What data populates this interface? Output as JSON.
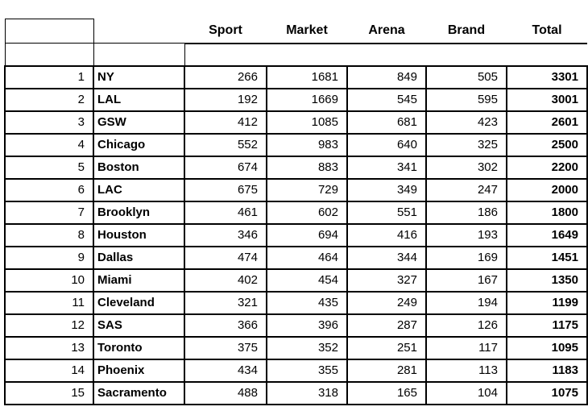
{
  "colors": {
    "gray_fill": "#d9d9d9",
    "orange_fill": "#fce9c8",
    "border": "#000000"
  },
  "table": {
    "columns": [
      "Sport",
      "Market",
      "Arena",
      "Brand",
      "Total"
    ],
    "rows": [
      {
        "rank": "1",
        "team": "NY",
        "values": [
          266,
          1681,
          849,
          505
        ],
        "total": 3301,
        "fills": [
          "gray",
          "orange",
          "orange",
          "orange"
        ]
      },
      {
        "rank": "2",
        "team": "LAL",
        "values": [
          192,
          1669,
          545,
          595
        ],
        "total": 3001,
        "fills": [
          "gray",
          "orange",
          "orange",
          "orange"
        ]
      },
      {
        "rank": "3",
        "team": "GSW",
        "values": [
          412,
          1085,
          681,
          423
        ],
        "total": 2601,
        "fills": [
          "gray",
          "orange",
          "orange",
          "orange"
        ]
      },
      {
        "rank": "4",
        "team": "Chicago",
        "values": [
          552,
          983,
          640,
          325
        ],
        "total": 2500,
        "fills": [
          "orange",
          "orange",
          "orange",
          "orange"
        ]
      },
      {
        "rank": "5",
        "team": "Boston",
        "values": [
          674,
          883,
          341,
          302
        ],
        "total": 2200,
        "fills": [
          "orange",
          "orange",
          "none",
          "orange"
        ]
      },
      {
        "rank": "6",
        "team": "LAC",
        "values": [
          675,
          729,
          349,
          247
        ],
        "total": 2000,
        "fills": [
          "orange",
          "none",
          "none",
          "none"
        ]
      },
      {
        "rank": "7",
        "team": "Brooklyn",
        "values": [
          461,
          602,
          551,
          186
        ],
        "total": 1800,
        "fills": [
          "orange",
          "none",
          "orange",
          "none"
        ]
      },
      {
        "rank": "8",
        "team": "Houston",
        "values": [
          346,
          694,
          416,
          193
        ],
        "total": 1649,
        "fills": [
          "gray",
          "none",
          "none",
          "none"
        ]
      },
      {
        "rank": "9",
        "team": "Dallas",
        "values": [
          474,
          464,
          344,
          169
        ],
        "total": 1451,
        "fills": [
          "orange",
          "none",
          "none",
          "none"
        ]
      },
      {
        "rank": "10",
        "team": "Miami",
        "values": [
          402,
          454,
          327,
          167
        ],
        "total": 1350,
        "fills": [
          "none",
          "none",
          "none",
          "none"
        ]
      },
      {
        "rank": "11",
        "team": "Cleveland",
        "values": [
          321,
          435,
          249,
          194
        ],
        "total": 1199,
        "fills": [
          "gray",
          "gray",
          "gray",
          "gray"
        ]
      },
      {
        "rank": "12",
        "team": "SAS",
        "values": [
          366,
          396,
          287,
          126
        ],
        "total": 1175,
        "fills": [
          "gray",
          "gray",
          "gray",
          "gray"
        ]
      },
      {
        "rank": "13",
        "team": "Toronto",
        "values": [
          375,
          352,
          251,
          117
        ],
        "total": 1095,
        "fills": [
          "gray",
          "gray",
          "gray",
          "gray"
        ]
      },
      {
        "rank": "14",
        "team": "Phoenix",
        "values": [
          434,
          355,
          281,
          113
        ],
        "total": 1183,
        "fills": [
          "gray",
          "gray",
          "gray",
          "gray"
        ]
      },
      {
        "rank": "15",
        "team": "Sacramento",
        "values": [
          488,
          318,
          165,
          104
        ],
        "total": 1075,
        "fills": [
          "orange",
          "gray",
          "gray",
          "gray"
        ]
      }
    ]
  }
}
